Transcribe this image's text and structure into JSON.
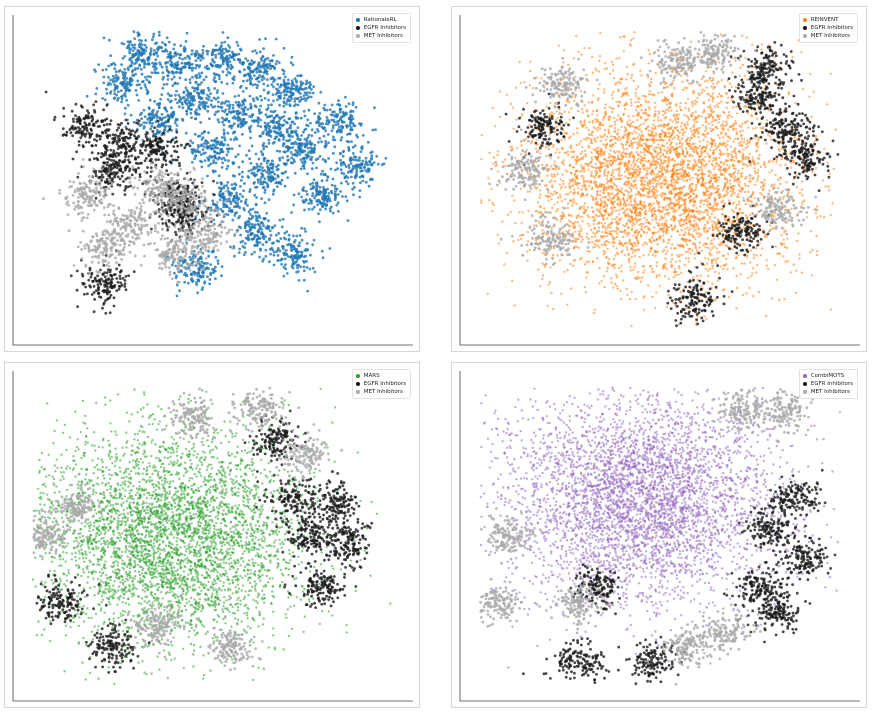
{
  "chart_data": [
    {
      "type": "scatter",
      "title": "",
      "xlabel": "",
      "ylabel": "",
      "grid": false,
      "legend_position": "top-right",
      "series": [
        {
          "name": "RationaleRL",
          "color": "#1f77b4",
          "region": "upper-right clustered islands",
          "centers": [
            [
              -0.4,
              0.85
            ],
            [
              -0.2,
              0.78
            ],
            [
              0.05,
              0.82
            ],
            [
              0.25,
              0.75
            ],
            [
              0.45,
              0.6
            ],
            [
              -0.1,
              0.55
            ],
            [
              0.15,
              0.45
            ],
            [
              0.35,
              0.35
            ],
            [
              -0.3,
              0.4
            ],
            [
              0.0,
              0.2
            ],
            [
              0.3,
              0.05
            ],
            [
              0.5,
              0.2
            ],
            [
              0.6,
              -0.1
            ],
            [
              0.1,
              -0.15
            ],
            [
              0.25,
              -0.35
            ],
            [
              -0.1,
              -0.6
            ],
            [
              0.45,
              -0.5
            ],
            [
              -0.5,
              0.65
            ],
            [
              0.7,
              0.4
            ],
            [
              0.8,
              0.1
            ]
          ]
        },
        {
          "name": "EGFR Inhibitors",
          "color": "#1a1a1a",
          "region": "left band",
          "centers": [
            [
              -0.7,
              0.35
            ],
            [
              -0.5,
              0.25
            ],
            [
              -0.3,
              0.2
            ],
            [
              -0.55,
              0.05
            ],
            [
              -0.2,
              -0.1
            ],
            [
              -0.6,
              -0.7
            ],
            [
              -0.15,
              -0.25
            ]
          ]
        },
        {
          "name": "MET Inhibitors",
          "color": "#a9a9a9",
          "region": "lower-left",
          "centers": [
            [
              -0.3,
              -0.05
            ],
            [
              -0.15,
              -0.15
            ],
            [
              -0.7,
              -0.1
            ],
            [
              -0.45,
              -0.3
            ],
            [
              -0.2,
              -0.5
            ],
            [
              -0.05,
              -0.35
            ],
            [
              -0.6,
              -0.45
            ]
          ]
        }
      ]
    },
    {
      "type": "scatter",
      "title": "",
      "xlabel": "",
      "ylabel": "",
      "grid": false,
      "legend_position": "top-right",
      "series": [
        {
          "name": "REINVENT",
          "color": "#ff7f0e",
          "region": "central dense cloud",
          "centers": [
            [
              0.0,
              0.0
            ]
          ]
        },
        {
          "name": "EGFR Inhibitors",
          "color": "#1a1a1a",
          "region": "right band",
          "centers": [
            [
              0.55,
              0.55
            ],
            [
              0.7,
              0.35
            ],
            [
              0.8,
              0.15
            ],
            [
              0.6,
              0.75
            ],
            [
              0.45,
              -0.35
            ],
            [
              0.2,
              -0.8
            ],
            [
              -0.65,
              0.35
            ]
          ]
        },
        {
          "name": "MET Inhibitors",
          "color": "#a9a9a9",
          "region": "surrounding halo",
          "centers": [
            [
              -0.55,
              0.65
            ],
            [
              -0.75,
              0.05
            ],
            [
              -0.6,
              -0.4
            ],
            [
              0.3,
              0.85
            ],
            [
              0.1,
              0.8
            ],
            [
              0.65,
              -0.2
            ]
          ]
        }
      ]
    },
    {
      "type": "scatter",
      "title": "",
      "xlabel": "",
      "ylabel": "",
      "grid": false,
      "legend_position": "top-right",
      "series": [
        {
          "name": "MARS",
          "color": "#2ca02c",
          "region": "left-center dense cloud",
          "centers": [
            [
              -0.25,
              0.0
            ]
          ]
        },
        {
          "name": "EGFR Inhibitors",
          "color": "#1a1a1a",
          "region": "right band",
          "centers": [
            [
              0.55,
              0.0
            ],
            [
              0.6,
              -0.35
            ],
            [
              0.7,
              0.2
            ],
            [
              0.45,
              0.25
            ],
            [
              0.75,
              -0.05
            ],
            [
              -0.55,
              -0.75
            ],
            [
              -0.85,
              -0.45
            ],
            [
              0.35,
              0.65
            ]
          ]
        },
        {
          "name": "MET Inhibitors",
          "color": "#a9a9a9",
          "region": "top and periphery",
          "centers": [
            [
              -0.1,
              0.8
            ],
            [
              0.25,
              0.85
            ],
            [
              -0.75,
              0.2
            ],
            [
              -0.95,
              0.0
            ],
            [
              -0.3,
              -0.6
            ],
            [
              0.1,
              -0.75
            ],
            [
              0.5,
              0.55
            ]
          ]
        }
      ]
    },
    {
      "type": "scatter",
      "title": "",
      "xlabel": "",
      "ylabel": "",
      "grid": false,
      "legend_position": "top-right",
      "series": [
        {
          "name": "CombiMOTS",
          "color": "#9467bd",
          "region": "upper-center dense cloud",
          "centers": [
            [
              -0.1,
              0.25
            ]
          ]
        },
        {
          "name": "EGFR Inhibitors",
          "color": "#1a1a1a",
          "region": "right band",
          "centers": [
            [
              0.6,
              0.05
            ],
            [
              0.75,
              0.25
            ],
            [
              0.8,
              -0.15
            ],
            [
              0.55,
              -0.35
            ],
            [
              -0.35,
              -0.35
            ],
            [
              -0.45,
              -0.85
            ],
            [
              -0.05,
              -0.85
            ],
            [
              0.65,
              -0.5
            ]
          ]
        },
        {
          "name": "MET Inhibitors",
          "color": "#a9a9a9",
          "region": "lower periphery",
          "centers": [
            [
              -0.85,
              0.0
            ],
            [
              -0.9,
              -0.45
            ],
            [
              -0.45,
              -0.45
            ],
            [
              0.35,
              -0.65
            ],
            [
              0.15,
              -0.75
            ],
            [
              0.45,
              0.85
            ],
            [
              0.7,
              0.85
            ]
          ]
        }
      ]
    }
  ]
}
